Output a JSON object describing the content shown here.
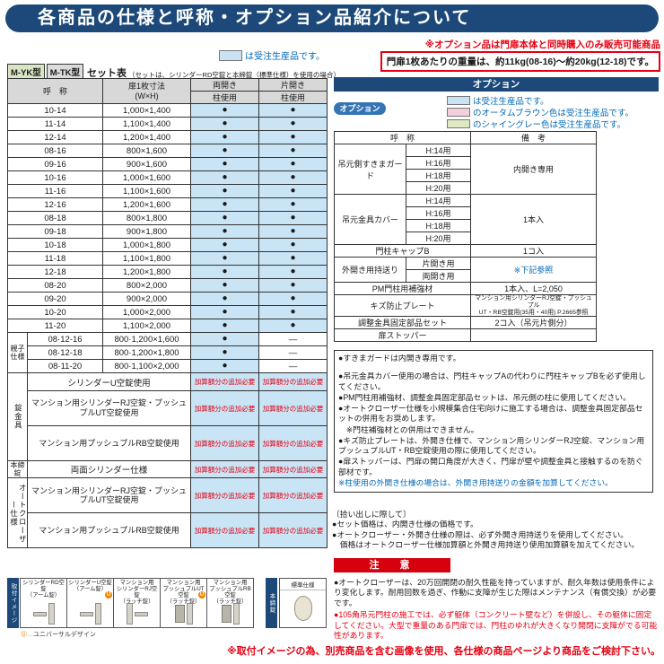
{
  "page": {
    "title": "各商品の仕様と呼称・オプション品紹介について",
    "bottom_note": "※取付イメージの為、別売商品を含む画像を使用、各仕様の商品ページより商品をご検討下さい。"
  },
  "left": {
    "legend": "は受注生産品です。",
    "badge1": "M-YK型",
    "badge2": "M-TK型",
    "set_table_label": "セット表",
    "set_table_note": "（セットは、シリンダーRD空錠と本締錠（標準仕様）を使用の場合）",
    "table": {
      "col_name": "呼　称",
      "col_size": "扉1枚寸法\n(W×H)",
      "col_double": "両開き",
      "col_single": "片開き",
      "col_pillar": "柱使用",
      "col_pillar2": "柱使用",
      "dot": "●",
      "dash": "—",
      "surcharge": "加算額分の追加必要",
      "rows": [
        {
          "name": "10-14",
          "size": "1,000×1,400"
        },
        {
          "name": "11-14",
          "size": "1,100×1,400"
        },
        {
          "name": "12-14",
          "size": "1,200×1,400"
        },
        {
          "name": "08-16",
          "size": "800×1,600"
        },
        {
          "name": "09-16",
          "size": "900×1,600"
        },
        {
          "name": "10-16",
          "size": "1,000×1,600"
        },
        {
          "name": "11-16",
          "size": "1,100×1,600"
        },
        {
          "name": "12-16",
          "size": "1,200×1,600"
        },
        {
          "name": "08-18",
          "size": "800×1,800"
        },
        {
          "name": "09-18",
          "size": "900×1,800"
        },
        {
          "name": "10-18",
          "size": "1,000×1,800"
        },
        {
          "name": "11-18",
          "size": "1,100×1,800"
        },
        {
          "name": "12-18",
          "size": "1,200×1,800"
        },
        {
          "name": "08-20",
          "size": "800×2,000"
        },
        {
          "name": "09-20",
          "size": "900×2,000"
        },
        {
          "name": "10-20",
          "size": "1,000×2,000"
        },
        {
          "name": "11-20",
          "size": "1,100×2,000"
        }
      ],
      "oyako_label": "親子\n仕様",
      "oyako_rows": [
        {
          "name": "08·12-16",
          "size": "800·1,200×1,600"
        },
        {
          "name": "08·12-18",
          "size": "800·1,200×1,800"
        },
        {
          "name": "08·11-20",
          "size": "800·1,100×2,000"
        }
      ],
      "lock_label": "錠金具",
      "lock_rows": [
        "シリンダーU空錠使用",
        "マンション用シリンダーRJ空錠・プッシュプルUT空錠使用",
        "マンション用プッシュプルRB空錠使用"
      ],
      "deadbolt_label": "本締錠",
      "deadbolt_rows": [
        "両面シリンダー仕様"
      ],
      "autocloser_label": "オートクローザー仕様",
      "autocloser_rows": [
        "マンション用シリンダーRJ空錠・プッシュプルUT空錠使用",
        "マンション用プッシュプルRB空錠使用"
      ]
    },
    "locks": {
      "side_label": "取付イメージ",
      "items": [
        {
          "lines": [
            "シリンダーRD空錠",
            "（アーム錠）"
          ],
          "ud": false,
          "style": "arm"
        },
        {
          "lines": [
            "シリンダーU空錠",
            "（アーム錠）"
          ],
          "ud": true,
          "style": "arm"
        },
        {
          "lines": [
            "マンション用",
            "シリンダーRJ空錠",
            "（ラッチ錠）"
          ],
          "ud": false,
          "style": "latch"
        },
        {
          "lines": [
            "マンション用",
            "プッシュプルUT空錠",
            "（ラッチ錠）"
          ],
          "ud": true,
          "style": "pushpull"
        },
        {
          "lines": [
            "マンション用",
            "プッシュプルRB空錠",
            "（ラッチ錠）"
          ],
          "ud": false,
          "style": "pushpull"
        }
      ],
      "ud_note": "Ⓤ…ユニバーサルデザイン",
      "deadbolt_vertical": "本締錠",
      "standard_label": "標準仕様"
    }
  },
  "right": {
    "note_top": "※オプション品は門扉本体と同時購入のみ販売可能商品",
    "weight_note": "門扉1枚あたりの重量は、約11kg(08-16)～約20kg(12-18)です。",
    "option_header": "オプション",
    "option_badge": "オプション",
    "legend": [
      {
        "color": "#c9e3f5",
        "text": "は受注生産品です。"
      },
      {
        "color": "#f3cfdc",
        "text": "のオータムブラウン色は受注生産品です。"
      },
      {
        "color": "#dee9c4",
        "text": "のシャイングレー色は受注生産品です。"
      }
    ],
    "option_table": {
      "col_name": "呼　称",
      "col_remark": "備　考",
      "groups": [
        {
          "name": "吊元側すきまガード",
          "subs": [
            "H:14用",
            "H:16用",
            "H:18用",
            "H:20用"
          ],
          "remark": "内開き専用",
          "cls": ""
        },
        {
          "name": "吊元金具カバー",
          "subs": [
            "H:14用",
            "H:16用",
            "H:18用",
            "H:20用"
          ],
          "remark": "1本入",
          "cls": ""
        },
        {
          "name": "門柱キャップB",
          "subs": [],
          "remark": "1コ入",
          "cls": ""
        },
        {
          "name": "外開き用持送り",
          "subs": [
            "片開き用",
            "両開き用"
          ],
          "remark": "※下記参照",
          "cls": "bluetxt"
        },
        {
          "name": "PM門柱用補強材",
          "subs": [],
          "remark": "1本入、L=2,050",
          "cls": ""
        },
        {
          "name": "キズ防止プレート",
          "subs": [],
          "remark": "マンション用シリンダーRJ空錠・プッシュプル\nUT・RB空錠用(35用・40用) P.2665参照",
          "cls": "small"
        },
        {
          "name": "調整金具固定部品セット",
          "subs": [],
          "remark": "2コ入（吊元片側分）",
          "cls": ""
        },
        {
          "name": "扉ストッパー",
          "subs": [],
          "remark": "",
          "cls": ""
        }
      ]
    },
    "notes_box": [
      {
        "t": "●すきまガードは内開き専用です。",
        "c": "",
        "gap": true
      },
      {
        "t": "●吊元金具カバー使用の場合は、門柱キャップAの代わりに門柱キャップBを必ず使用してください。",
        "c": "",
        "gap": false
      },
      {
        "t": "●PM門柱用補強材、調整金具固定部品セットは、吊元側の柱に使用してください。",
        "c": "",
        "gap": false
      },
      {
        "t": "●オートクローザー仕様を小規模集合住宅向けに施工する場合は、調整金具固定部品セットの併用をお奨めします。",
        "c": "",
        "gap": false
      },
      {
        "t": "　※門柱補強材との併用はできません。",
        "c": "",
        "gap": false
      },
      {
        "t": "●キズ防止プレートは、外開き仕様で、マンション用シリンダーRJ空錠、マンション用プッシュプルUT・RB空錠使用の際に使用してください。",
        "c": "",
        "gap": false
      },
      {
        "t": "●扉ストッパーは、門扉の開口角度が大きく、門扉が壁や調整金具と接触するのを防ぐ部材です。",
        "c": "",
        "gap": false
      },
      {
        "t": "※柱使用の外開き仕様の場合は、外開き用持送りの金額を加算してください。",
        "c": "blue-text",
        "gap": false
      }
    ],
    "pickup_title": "〔拾い出しに際して〕",
    "pickup_notes": [
      "●セット価格は、内開き仕様の価格です。",
      "●オートクローザー・外開き仕様の際は、必ず外開き用持送りを使用してください。",
      "　価格はオートクローザー仕様加算額と外開き用持送り使用加算額を加えてください。"
    ],
    "caution_title": "注　意",
    "caution_notes": [
      {
        "t": "●オートクローザーは、20万回開閉の耐久性能を持っていますが、耐久年数は使用条件により変化します。耐用回数を過ぎ、作動に支障が生じた際はメンテナンス（有償交換）が必要です。",
        "c": ""
      },
      {
        "t": "●105角吊元門柱の施工では、必ず躯体（コンクリート壁など）を併設し、その躯体に固定してください。大型で重量のある門扉では、門柱のゆれが大きくなり開閉に支障がでる可能性があります。",
        "c": "red"
      }
    ]
  }
}
